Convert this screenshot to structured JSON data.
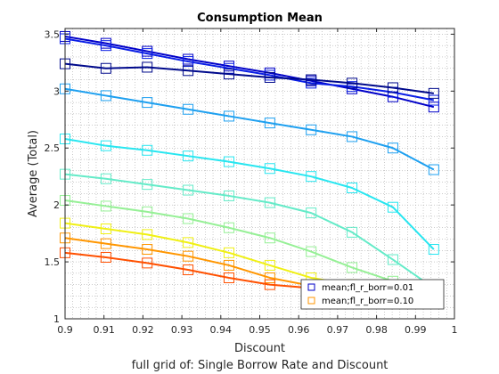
{
  "chart_data": {
    "type": "line",
    "title": "Consumption Mean",
    "xlabel": "Discount",
    "ylabel": "Average (Total)",
    "note": "full grid of: Single Borrow Rate and Discount",
    "xlim": [
      0.9,
      1.0
    ],
    "ylim": [
      1.0,
      3.55
    ],
    "xticks": [
      0.9,
      0.91,
      0.92,
      0.93,
      0.94,
      0.95,
      0.96,
      0.97,
      0.98,
      0.99,
      1.0
    ],
    "xtick_labels": [
      "0.9",
      "0.91",
      "0.92",
      "0.93",
      "0.94",
      "0.95",
      "0.96",
      "0.97",
      "0.98",
      "0.99",
      "1"
    ],
    "yticks": [
      1.0,
      1.5,
      2.0,
      2.5,
      3.0,
      3.5
    ],
    "ytick_labels": [
      "1",
      "1.5",
      "2",
      "2.5",
      "3",
      "3.5"
    ],
    "grid": "minor-dotted",
    "marker": "square",
    "x": [
      0.9,
      0.9105,
      0.9211,
      0.9316,
      0.9421,
      0.9526,
      0.9632,
      0.9737,
      0.9842,
      0.9947
    ],
    "series": [
      {
        "color": "#0000c8",
        "values": [
          3.48,
          3.42,
          3.35,
          3.28,
          3.22,
          3.16,
          3.09,
          3.02,
          2.95,
          2.86
        ]
      },
      {
        "color": "#0a1ee6",
        "values": [
          3.46,
          3.4,
          3.33,
          3.26,
          3.2,
          3.14,
          3.07,
          3.04,
          2.99,
          2.92
        ]
      },
      {
        "color": "#000a8c",
        "values": [
          3.24,
          3.2,
          3.21,
          3.18,
          3.15,
          3.12,
          3.1,
          3.07,
          3.03,
          2.98
        ]
      },
      {
        "color": "#1ea0f0",
        "values": [
          3.02,
          2.96,
          2.9,
          2.84,
          2.78,
          2.72,
          2.66,
          2.6,
          2.5,
          2.31
        ]
      },
      {
        "color": "#28e6f0",
        "values": [
          2.58,
          2.52,
          2.48,
          2.43,
          2.38,
          2.32,
          2.25,
          2.15,
          1.98,
          1.61
        ]
      },
      {
        "color": "#64ebc8",
        "values": [
          2.27,
          2.23,
          2.18,
          2.13,
          2.08,
          2.02,
          1.93,
          1.76,
          1.52,
          1.27
        ]
      },
      {
        "color": "#96f096",
        "values": [
          2.04,
          1.99,
          1.94,
          1.88,
          1.8,
          1.71,
          1.59,
          1.45,
          1.33,
          1.27
        ]
      },
      {
        "color": "#f0f014",
        "values": [
          1.84,
          1.79,
          1.74,
          1.67,
          1.58,
          1.47,
          1.36,
          1.3,
          1.28,
          1.27
        ]
      },
      {
        "color": "#ff9600",
        "values": [
          1.71,
          1.66,
          1.61,
          1.55,
          1.47,
          1.36,
          1.29,
          1.28,
          1.27,
          1.27
        ]
      },
      {
        "color": "#ff5000",
        "values": [
          1.58,
          1.54,
          1.49,
          1.43,
          1.36,
          1.3,
          1.27,
          1.27,
          1.27,
          1.27
        ]
      }
    ],
    "legend": {
      "placement": "bottom-right",
      "entries": [
        {
          "label": "mean;fl_r_borr=0.01",
          "color": "#0000c8"
        },
        {
          "label": "mean;fl_r_borr=0.10",
          "color": "#ff9600"
        }
      ]
    }
  }
}
